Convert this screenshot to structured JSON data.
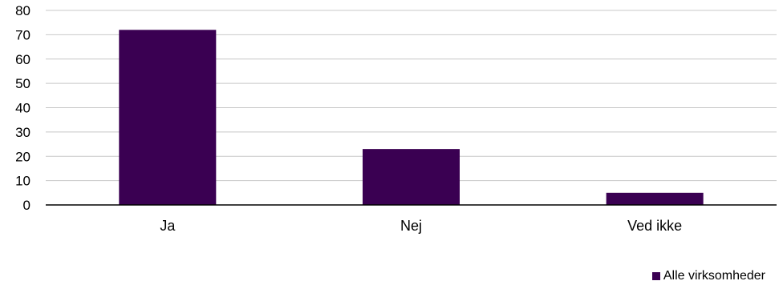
{
  "chart_data": {
    "type": "bar",
    "categories": [
      "Ja",
      "Nej",
      "Ved ikke"
    ],
    "series": [
      {
        "name": "Alle virksomheder",
        "values": [
          72,
          23,
          5
        ],
        "color": "#3a0052"
      }
    ],
    "title": "",
    "xlabel": "",
    "ylabel": "",
    "ylim": [
      0,
      80
    ],
    "yticks": [
      "0",
      "10",
      "20",
      "30",
      "40",
      "50",
      "60",
      "70",
      "80"
    ],
    "grid": true,
    "legend": "bottom-right"
  }
}
